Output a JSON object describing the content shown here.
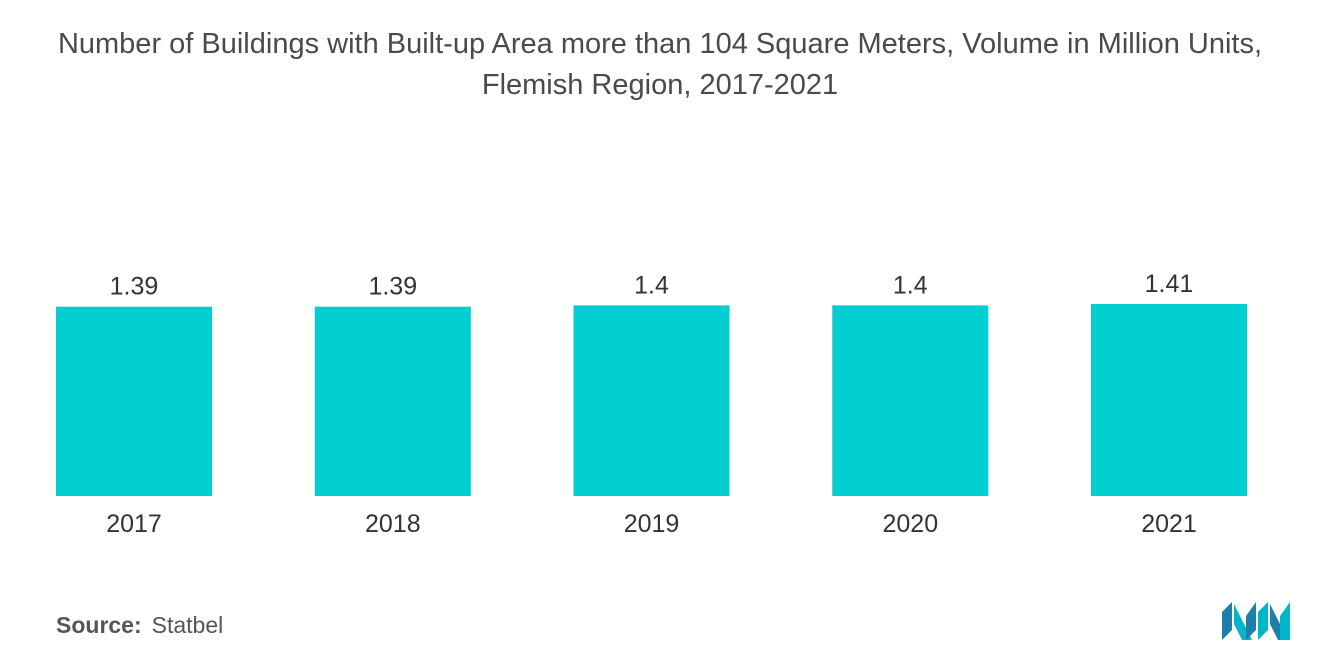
{
  "chart_data": {
    "type": "bar",
    "title": "Number of Buildings with Built-up Area more than 104 Square Meters, Volume in Million Units, Flemish Region, 2017-2021",
    "categories": [
      "2017",
      "2018",
      "2019",
      "2020",
      "2021"
    ],
    "values": [
      1.39,
      1.39,
      1.4,
      1.4,
      1.41
    ],
    "value_labels": [
      "1.39",
      "1.39",
      "1.4",
      "1.4",
      "1.41"
    ],
    "xlabel": "",
    "ylabel": "",
    "ylim": [
      0,
      1.41
    ],
    "grid": false,
    "legend": "none",
    "bar_color": "#00CED1"
  },
  "source": {
    "label": "Source:",
    "value": "Statbel"
  },
  "logo": {
    "icon": "mordor-intelligence-logo-icon",
    "colors": [
      "#1f7fa8",
      "#00CED1"
    ]
  }
}
